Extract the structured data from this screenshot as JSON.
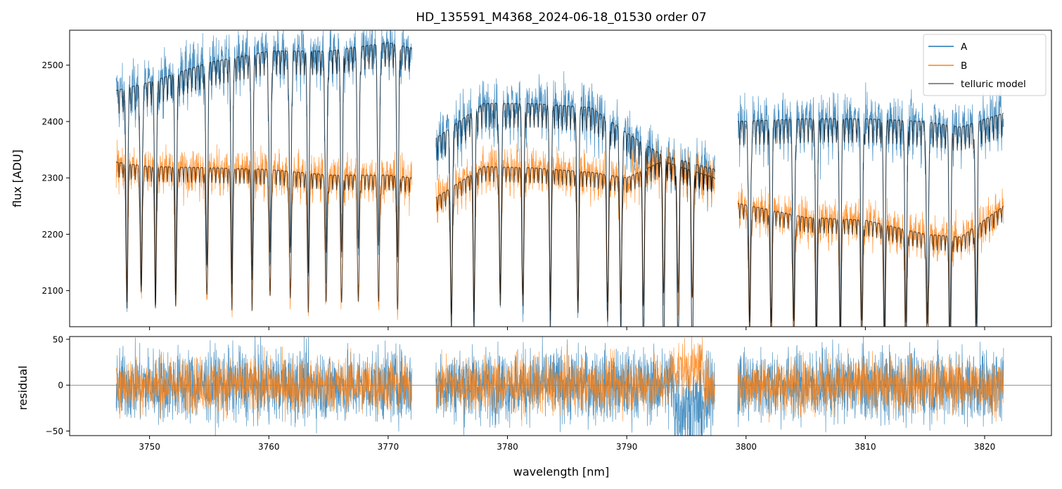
{
  "chart_data": [
    {
      "type": "line",
      "title": "HD_135591_M4368_2024-06-18_01530  order 07",
      "xlabel": "",
      "ylabel": "flux [ADU]",
      "xlim": [
        3743.3,
        3825.6
      ],
      "ylim": [
        2036,
        2562
      ],
      "y_ticks": [
        2100,
        2200,
        2300,
        2400,
        2500
      ],
      "legend": {
        "placement": "top-right",
        "entries": [
          "A",
          "B",
          "telluric model"
        ]
      },
      "colors": {
        "A": "#1f77b4",
        "B": "#ff7f0e",
        "telluric model": "#000000"
      },
      "segments": [
        [
          3747.2,
          3772.0
        ],
        [
          3774.0,
          3797.4
        ],
        [
          3799.3,
          3821.6
        ]
      ],
      "series": [
        {
          "name": "A",
          "continuum": {
            "x": [
              3747.2,
              3750,
              3755,
              3760,
              3765,
              3770,
              3772,
              3774,
              3778,
              3782,
              3787,
              3790,
              3793,
              3797.4,
              3799.3,
              3805,
              3810,
              3815,
              3818,
              3821.6
            ],
            "y": [
              2455,
              2470,
              2505,
              2525,
              2525,
              2540,
              2530,
              2370,
              2432,
              2432,
              2425,
              2380,
              2340,
              2315,
              2400,
              2405,
              2405,
              2400,
              2390,
              2415
            ]
          }
        },
        {
          "name": "B",
          "continuum": {
            "x": [
              3747.2,
              3750,
              3755,
              3760,
              3765,
              3770,
              3772,
              3774,
              3778,
              3782,
              3787,
              3790,
              3793,
              3797.4,
              3799.3,
              3805,
              3810,
              3815,
              3818,
              3821.6
            ],
            "y": [
              2328,
              2320,
              2318,
              2315,
              2305,
              2305,
              2300,
              2265,
              2320,
              2318,
              2310,
              2300,
              2330,
              2300,
              2255,
              2230,
              2225,
              2200,
              2195,
              2250
            ]
          }
        },
        {
          "name": "telluric model",
          "absorption_lines_nm": [
            3748.1,
            3749.3,
            3750.5,
            3752.2,
            3754.8,
            3756.9,
            3758.6,
            3760.1,
            3761.8,
            3763.3,
            3764.8,
            3766.1,
            3767.5,
            3769.2,
            3770.8,
            3775.3,
            3777.2,
            3779.4,
            3781.3,
            3783.6,
            3785.9,
            3788.4,
            3789.5,
            3791.4,
            3793.1,
            3794.3,
            3795.5,
            3800.3,
            3802.1,
            3804.0,
            3805.9,
            3807.9,
            3809.7,
            3811.6,
            3813.4,
            3815.2,
            3817.1,
            3819.3
          ]
        }
      ]
    },
    {
      "type": "line",
      "title": "",
      "xlabel": "wavelength [nm]",
      "ylabel": "residual",
      "xlim": [
        3743.3,
        3825.6
      ],
      "ylim": [
        -55,
        53
      ],
      "x_ticks": [
        3750,
        3760,
        3770,
        3780,
        3790,
        3800,
        3810,
        3820
      ],
      "y_ticks": [
        -50,
        0,
        50
      ],
      "zero_line": true,
      "series": [
        {
          "name": "A",
          "color": "#1f77b4",
          "noise_amplitude": 40
        },
        {
          "name": "B",
          "color": "#ff7f0e",
          "noise_amplitude": 30
        }
      ]
    }
  ]
}
